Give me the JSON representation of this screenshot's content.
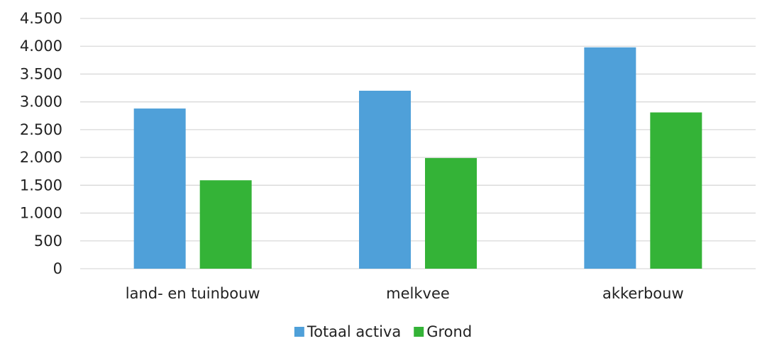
{
  "chart_data": {
    "type": "bar",
    "categories": [
      "land- en tuinbouw",
      "melkvee",
      "akkerbouw"
    ],
    "series": [
      {
        "name": "Totaal activa",
        "color": "#4fa0d9",
        "values": [
          2880,
          3200,
          3980
        ]
      },
      {
        "name": "Grond",
        "color": "#34b337",
        "values": [
          1590,
          1990,
          2810
        ]
      }
    ],
    "ylim": [
      0,
      4500
    ],
    "yticks": [
      0,
      500,
      {
        "value": 1000,
        "label": "1.000"
      },
      {
        "value": 1500,
        "label": "1.500"
      },
      {
        "value": 2000,
        "label": "2.000"
      },
      {
        "value": 2500,
        "label": "2.500"
      },
      {
        "value": 3000,
        "label": "3.000"
      },
      {
        "value": 3500,
        "label": "3.500"
      },
      {
        "value": 4000,
        "label": "4.000"
      },
      {
        "value": 4500,
        "label": "4.500"
      }
    ],
    "grid": true,
    "legend": "bottom"
  }
}
